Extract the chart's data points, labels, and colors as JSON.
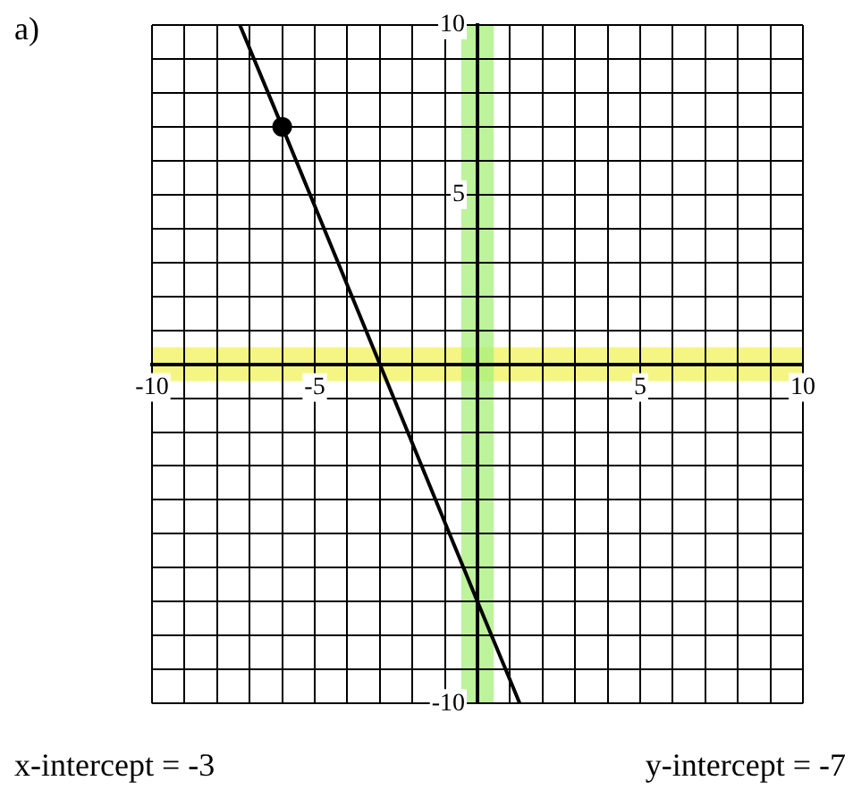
{
  "chart_data": {
    "type": "line",
    "title": "a)",
    "xlim": [
      -10,
      10
    ],
    "ylim": [
      -10,
      10
    ],
    "xticks": [
      -10,
      {
        "value": -9,
        "label": null
      },
      {
        "value": -8,
        "label": null
      },
      {
        "value": -7,
        "label": null
      },
      {
        "value": -6,
        "label": null
      },
      -5,
      {
        "value": -4,
        "label": null
      },
      {
        "value": -3,
        "label": null
      },
      {
        "value": -2,
        "label": null
      },
      {
        "value": -1,
        "label": null
      },
      {
        "value": 0,
        "label": null
      },
      {
        "value": 1,
        "label": null
      },
      {
        "value": 2,
        "label": null
      },
      {
        "value": 3,
        "label": null
      },
      {
        "value": 4,
        "label": null
      },
      5,
      {
        "value": 6,
        "label": null
      },
      {
        "value": 7,
        "label": null
      },
      {
        "value": 8,
        "label": null
      },
      {
        "value": 9,
        "label": null
      },
      10
    ],
    "yticks": [
      -10,
      {
        "value": -9,
        "label": null
      },
      {
        "value": -8,
        "label": null
      },
      {
        "value": -7,
        "label": null
      },
      {
        "value": -6,
        "label": null
      },
      {
        "value": -5,
        "label": null
      },
      {
        "value": -4,
        "label": null
      },
      {
        "value": -3,
        "label": null
      },
      {
        "value": -2,
        "label": null
      },
      {
        "value": -1,
        "label": null
      },
      {
        "value": 0,
        "label": null
      },
      {
        "value": 1,
        "label": null
      },
      {
        "value": 2,
        "label": null
      },
      {
        "value": 3,
        "label": null
      },
      {
        "value": 4,
        "label": null
      },
      5,
      {
        "value": 6,
        "label": null
      },
      {
        "value": 7,
        "label": null
      },
      {
        "value": 8,
        "label": null
      },
      {
        "value": 9,
        "label": null
      },
      10
    ],
    "grid": true,
    "series": [
      {
        "type": "line",
        "color": "#000000",
        "x": [
          -7.3,
          -6,
          -3,
          0,
          1.3
        ],
        "values": [
          10,
          7,
          0,
          -7,
          -10
        ],
        "marker": "none"
      },
      {
        "type": "scatter",
        "color": "#000000",
        "x": [
          -6
        ],
        "values": [
          7
        ],
        "marker": "circle"
      }
    ],
    "bands": [
      {
        "axis": "y",
        "from": -0.5,
        "to": 0.5,
        "color": "#f2f25a"
      },
      {
        "axis": "x",
        "from": -0.5,
        "to": 0.5,
        "color": "#a6ef7a"
      }
    ],
    "annotations": [
      "x-intercept = -3",
      "y-intercept = -7"
    ]
  }
}
